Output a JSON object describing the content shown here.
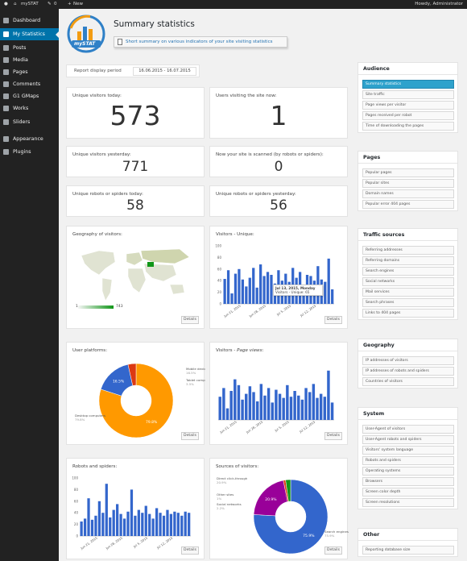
{
  "admin_bar": {
    "site_name": "mySTAT",
    "comments_count": "0",
    "new_label": "New",
    "greeting": "Howdy, Administrator"
  },
  "sidebar": {
    "items": [
      {
        "label": "Dashboard",
        "icon": "dashboard-icon",
        "active": false
      },
      {
        "label": "My Statistics",
        "icon": "chart-icon",
        "active": true
      },
      {
        "label": "Posts",
        "icon": "pin-icon",
        "active": false
      },
      {
        "label": "Media",
        "icon": "media-icon",
        "active": false
      },
      {
        "label": "Pages",
        "icon": "page-icon",
        "active": false
      },
      {
        "label": "Comments",
        "icon": "comment-icon",
        "active": false
      },
      {
        "label": "G1 GMaps",
        "icon": "pin-icon",
        "active": false
      },
      {
        "label": "Works",
        "icon": "pin-icon",
        "active": false
      },
      {
        "label": "Sliders",
        "icon": "pin-icon",
        "active": false
      },
      {
        "label": "Appearance",
        "icon": "brush-icon",
        "active": false
      },
      {
        "label": "Plugins",
        "icon": "plugin-icon",
        "active": false
      }
    ]
  },
  "header": {
    "logo_text": "mySTAT",
    "title": "Summary statistics",
    "subtitle": "Short summary on various indicators of your site visiting statistics"
  },
  "period": {
    "label": "Report display period",
    "value": "16.06.2015 - 16.07.2015"
  },
  "stats": {
    "unique_today": {
      "label": "Unique visitors today:",
      "value": "573"
    },
    "users_now": {
      "label": "Users visiting the site now:",
      "value": "1"
    },
    "unique_yesterday": {
      "label": "Unique visitors yesterday:",
      "value": "771"
    },
    "scanned_now": {
      "label": "Now your site is scanned (by robots or spiders):",
      "value": "0"
    },
    "robots_today": {
      "label": "Unique robots or spiders today:",
      "value": "58"
    },
    "robots_yesterday": {
      "label": "Unique robots or spiders yesterday:",
      "value": "56"
    }
  },
  "panels": {
    "geo": {
      "title": "Geography of visitors:",
      "legend_min": "1",
      "legend_max": "743",
      "details": "Details"
    },
    "visitors_unique": {
      "title": "Visitors - Unique:",
      "tooltip_date": "Jul 13, 2015, Monday",
      "tooltip_value": "Visitors - Unique: 65",
      "details": "Details"
    },
    "platforms": {
      "title": "User platforms:",
      "details": "Details"
    },
    "visitors_views": {
      "title_prefix": "Visitors - ",
      "title_em": "Page views",
      "title_suffix": ":",
      "details": "Details"
    },
    "robots": {
      "title": "Robots and spiders:",
      "details": "Details"
    },
    "sources": {
      "title": "Sources of visitors:",
      "details": "Details"
    }
  },
  "right_panels": [
    {
      "title": "Audience",
      "items": [
        "Summary statistics",
        "Site traffic",
        "Page views per visitor",
        "Pages received per robot",
        "Time of downloading the pages"
      ],
      "selected": 0
    },
    {
      "title": "Pages",
      "items": [
        "Popular pages",
        "Popular sites",
        "Domain names",
        "Popular error 404 pages"
      ],
      "selected": -1
    },
    {
      "title": "Traffic sources",
      "items": [
        "Referring addresses",
        "Referring domains",
        "Search engines",
        "Social networks",
        "Mail services",
        "Search phrases",
        "Links to 404 pages"
      ],
      "selected": -1
    },
    {
      "title": "Geography",
      "items": [
        "IP addresses of visitors",
        "IP addresses of robots and spiders",
        "Countries of visitors"
      ],
      "selected": -1
    },
    {
      "title": "System",
      "items": [
        "User-Agent of visitors",
        "User-Agent robots and spiders",
        "Visitors' system language",
        "Robots and spiders",
        "Operating systems",
        "Browsers",
        "Screen color depth",
        "Screen resolutions"
      ],
      "selected": -1
    },
    {
      "title": "Other",
      "items": [
        "Reporting database size"
      ],
      "selected": -1
    }
  ],
  "colors": {
    "accent": "#0073aa",
    "bar": "#3366cc",
    "orange": "#ff9900",
    "red": "#dc3912",
    "green": "#109618",
    "purple": "#990099",
    "selected_item": "#2ea2cc"
  },
  "chart_data": [
    {
      "type": "bar",
      "title": "Visitors - Unique:",
      "yticks": [
        "100",
        "80",
        "60",
        "40",
        "20",
        "0"
      ],
      "ylim": [
        0,
        100
      ],
      "xtick_labels": [
        "Jun 21, 2015",
        "Jun 28, 2015",
        "Jul 5, 2015",
        "Jul 12, 2015"
      ],
      "values": [
        43,
        58,
        18,
        52,
        60,
        42,
        30,
        45,
        62,
        28,
        68,
        48,
        55,
        50,
        35,
        58,
        40,
        52,
        38,
        62,
        45,
        55,
        30,
        50,
        48,
        40,
        65,
        42,
        38,
        78,
        25
      ]
    },
    {
      "type": "pie",
      "title": "User platforms:",
      "series": [
        {
          "name": "Desktop computers",
          "value": 79.8
        },
        {
          "name": "Mobile devices",
          "value": 16.5
        },
        {
          "name": "Tablet computers",
          "value": 3.5
        }
      ]
    },
    {
      "type": "bar",
      "title": "Visitors - Page views:",
      "xtick_labels": [
        "Jun 21, 2015",
        "Jun 28, 2015",
        "Jul 5, 2015",
        "Jul 12, 2015"
      ],
      "values": [
        40,
        55,
        20,
        50,
        70,
        60,
        35,
        45,
        58,
        48,
        32,
        62,
        42,
        55,
        30,
        52,
        45,
        38,
        60,
        40,
        50,
        42,
        35,
        55,
        48,
        62,
        38,
        45,
        40,
        85,
        30
      ]
    },
    {
      "type": "bar",
      "title": "Robots and spiders:",
      "yticks": [
        "100",
        "80",
        "60",
        "40",
        "20",
        "0"
      ],
      "ylim": [
        0,
        100
      ],
      "xtick_labels": [
        "Jun 21, 2015",
        "Jun 28, 2015",
        "Jul 5, 2015",
        "Jul 12, 2015"
      ],
      "values": [
        25,
        30,
        65,
        28,
        35,
        60,
        40,
        90,
        32,
        45,
        55,
        38,
        30,
        42,
        80,
        35,
        45,
        40,
        52,
        38,
        30,
        48,
        40,
        35,
        45,
        38,
        42,
        40,
        35,
        42,
        40
      ]
    },
    {
      "type": "pie",
      "title": "Sources of visitors:",
      "series": [
        {
          "name": "Search engines",
          "value": 75.9
        },
        {
          "name": "Direct click-through",
          "value": 20.9
        },
        {
          "name": "Other sites",
          "value": 1
        },
        {
          "name": "Social networks",
          "value": 2.2
        }
      ]
    }
  ]
}
